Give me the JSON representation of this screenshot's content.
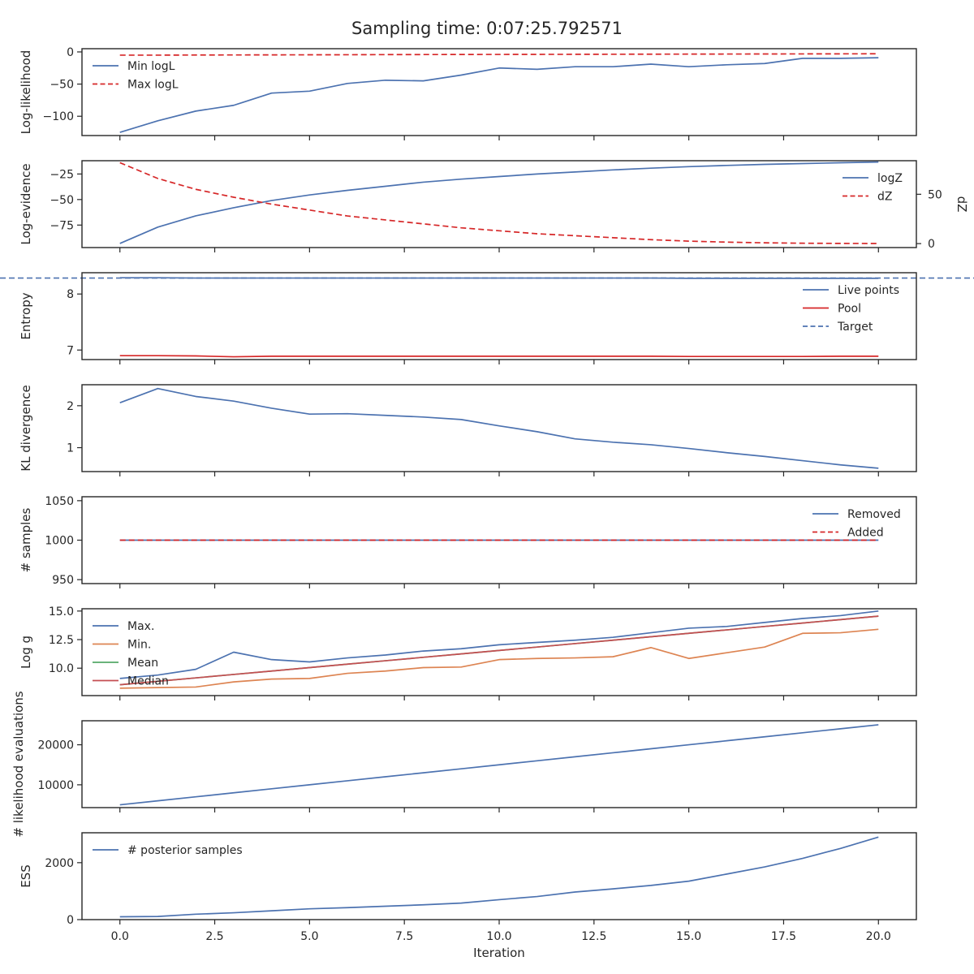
{
  "title": "Sampling time: 0:07:25.792571",
  "xlabel": "Iteration",
  "colors": {
    "blue": "#4c72b0",
    "orange": "#dd8452",
    "green": "#55a868",
    "red": "#c44e52",
    "dashed_red": "#d62728",
    "axes": "#262626"
  },
  "xaxis": {
    "lim": [
      -1,
      21
    ],
    "ticks": [
      0.0,
      2.5,
      5.0,
      7.5,
      10.0,
      12.5,
      15.0,
      17.5,
      20.0
    ],
    "tick_labels": [
      "0.0",
      "2.5",
      "5.0",
      "7.5",
      "10.0",
      "12.5",
      "15.0",
      "17.5",
      "20.0"
    ]
  },
  "chart_data": [
    {
      "type": "line",
      "ylabel": "Log-likelihood",
      "ylim": [
        -130,
        5
      ],
      "yticks": [
        0,
        -50,
        -100
      ],
      "ytick_labels": [
        "0",
        "−50",
        "−100"
      ],
      "legend": "upper left",
      "x": [
        0,
        1,
        2,
        3,
        4,
        5,
        6,
        7,
        8,
        9,
        10,
        11,
        12,
        13,
        14,
        15,
        16,
        17,
        18,
        19,
        20
      ],
      "series": [
        {
          "name": "Min logL",
          "color": "#4c72b0",
          "dash": false,
          "values": [
            -125,
            -107,
            -92,
            -83,
            -64,
            -61,
            -49,
            -44,
            -45,
            -36,
            -25,
            -27,
            -23,
            -23,
            -19,
            -23,
            -20,
            -18,
            -10,
            -10,
            -9
          ]
        },
        {
          "name": "Max logL",
          "color": "#d62728",
          "dash": true,
          "values": [
            -5,
            -5,
            -4.8,
            -4.7,
            -4.6,
            -4.5,
            -4.4,
            -4.2,
            -4.1,
            -4,
            -3.9,
            -3.8,
            -3.7,
            -3.6,
            -3.5,
            -3.4,
            -3.3,
            -3.2,
            -3.1,
            -3,
            -2.9
          ]
        }
      ]
    },
    {
      "type": "line",
      "ylabel": "Log-evidence",
      "ylim": [
        -97,
        -12
      ],
      "yticks": [
        -25,
        -50,
        -75
      ],
      "ytick_labels": [
        "−25",
        "−50",
        "−75"
      ],
      "y2label": "dZ",
      "y2lim": [
        -4,
        84
      ],
      "y2ticks": [
        0,
        50
      ],
      "y2tick_labels": [
        "0",
        "50"
      ],
      "legend": "upper right",
      "x": [
        0,
        1,
        2,
        3,
        4,
        5,
        6,
        7,
        8,
        9,
        10,
        11,
        12,
        13,
        14,
        15,
        16,
        17,
        18,
        19,
        20
      ],
      "series": [
        {
          "name": "logZ",
          "color": "#4c72b0",
          "dash": false,
          "axis": "left",
          "values": [
            -93,
            -77,
            -66,
            -58,
            -51,
            -45.5,
            -41,
            -37,
            -33,
            -30,
            -27.5,
            -25,
            -23,
            -21,
            -19.3,
            -17.8,
            -16.6,
            -15.6,
            -14.8,
            -14,
            -13.3
          ]
        },
        {
          "name": "dZ",
          "color": "#d62728",
          "dash": true,
          "axis": "right",
          "values": [
            82,
            66,
            55,
            47,
            40,
            34,
            28,
            24,
            20,
            16,
            13,
            10,
            8,
            6,
            4,
            2.5,
            1.5,
            0.8,
            0.4,
            0.2,
            0.1
          ]
        }
      ]
    },
    {
      "type": "line",
      "ylabel": "Entropy",
      "ylim": [
        6.83,
        8.38
      ],
      "yticks": [
        8,
        7
      ],
      "ytick_labels": [
        "8",
        "7"
      ],
      "legend": "upper right",
      "x": [
        0,
        1,
        2,
        3,
        4,
        5,
        6,
        7,
        8,
        9,
        10,
        11,
        12,
        13,
        14,
        15,
        16,
        17,
        18,
        19,
        20
      ],
      "series": [
        {
          "name": "Live points",
          "color": "#4c72b0",
          "dash": false,
          "values": [
            8.29,
            8.29,
            8.285,
            8.285,
            8.285,
            8.285,
            8.285,
            8.285,
            8.285,
            8.285,
            8.285,
            8.285,
            8.285,
            8.285,
            8.285,
            8.28,
            8.28,
            8.28,
            8.28,
            8.28,
            8.28
          ]
        },
        {
          "name": "Pool",
          "color": "#d62728",
          "dash": false,
          "values": [
            6.9,
            6.9,
            6.895,
            6.88,
            6.89,
            6.89,
            6.89,
            6.89,
            6.89,
            6.89,
            6.89,
            6.89,
            6.89,
            6.89,
            6.89,
            6.885,
            6.885,
            6.885,
            6.885,
            6.89,
            6.89
          ]
        },
        {
          "name": "Target",
          "color": "#4c72b0",
          "dash": true,
          "hline": 8.285
        }
      ]
    },
    {
      "type": "line",
      "ylabel": "KL divergence",
      "ylim": [
        0.43,
        2.5
      ],
      "yticks": [
        2,
        1
      ],
      "ytick_labels": [
        "2",
        "1"
      ],
      "legend": "none",
      "x": [
        0,
        1,
        2,
        3,
        4,
        5,
        6,
        7,
        8,
        9,
        10,
        11,
        12,
        13,
        14,
        15,
        16,
        17,
        18,
        19,
        20
      ],
      "series": [
        {
          "color": "#4c72b0",
          "dash": false,
          "values": [
            2.07,
            2.41,
            2.22,
            2.11,
            1.94,
            1.8,
            1.81,
            1.77,
            1.73,
            1.67,
            1.52,
            1.38,
            1.21,
            1.13,
            1.07,
            0.98,
            0.88,
            0.79,
            0.69,
            0.59,
            0.51
          ]
        }
      ]
    },
    {
      "type": "line",
      "ylabel": "# samples",
      "ylim": [
        945,
        1055
      ],
      "yticks": [
        1050,
        1000,
        950
      ],
      "ytick_labels": [
        "1050",
        "1000",
        "950"
      ],
      "legend": "upper right",
      "x": [
        0,
        1,
        2,
        3,
        4,
        5,
        6,
        7,
        8,
        9,
        10,
        11,
        12,
        13,
        14,
        15,
        16,
        17,
        18,
        19,
        20
      ],
      "series": [
        {
          "name": "Removed",
          "color": "#4c72b0",
          "dash": false,
          "values": [
            1000,
            1000,
            1000,
            1000,
            1000,
            1000,
            1000,
            1000,
            1000,
            1000,
            1000,
            1000,
            1000,
            1000,
            1000,
            1000,
            1000,
            1000,
            1000,
            1000,
            1000
          ]
        },
        {
          "name": "Added",
          "color": "#d62728",
          "dash": true,
          "values": [
            1000,
            1000,
            1000,
            1000,
            1000,
            1000,
            1000,
            1000,
            1000,
            1000,
            1000,
            1000,
            1000,
            1000,
            1000,
            1000,
            1000,
            1000,
            1000,
            1000,
            1000
          ]
        }
      ]
    },
    {
      "type": "line",
      "ylabel": "Log g",
      "ylim": [
        7.6,
        15.2
      ],
      "yticks": [
        15,
        12.5,
        10
      ],
      "ytick_labels": [
        "15.0",
        "12.5",
        "10.0"
      ],
      "legend": "upper left",
      "x": [
        0,
        1,
        2,
        3,
        4,
        5,
        6,
        7,
        8,
        9,
        10,
        11,
        12,
        13,
        14,
        15,
        16,
        17,
        18,
        19,
        20
      ],
      "series": [
        {
          "name": "Max.",
          "color": "#4c72b0",
          "dash": false,
          "values": [
            9.1,
            9.4,
            9.9,
            11.4,
            10.75,
            10.55,
            10.9,
            11.15,
            11.5,
            11.7,
            12.05,
            12.25,
            12.45,
            12.7,
            13.1,
            13.5,
            13.65,
            14.0,
            14.35,
            14.6,
            15.0
          ]
        },
        {
          "name": "Min.",
          "color": "#dd8452",
          "dash": false,
          "values": [
            8.25,
            8.3,
            8.35,
            8.8,
            9.05,
            9.1,
            9.55,
            9.75,
            10.05,
            10.1,
            10.75,
            10.85,
            10.9,
            11.0,
            11.8,
            10.85,
            11.35,
            11.85,
            13.05,
            13.1,
            13.4
          ]
        },
        {
          "name": "Mean",
          "color": "#55a868",
          "dash": false,
          "values": [
            8.55,
            8.85,
            9.15,
            9.45,
            9.75,
            10.05,
            10.35,
            10.65,
            10.95,
            11.25,
            11.55,
            11.85,
            12.15,
            12.45,
            12.75,
            13.05,
            13.35,
            13.65,
            13.95,
            14.25,
            14.55
          ]
        },
        {
          "name": "Median",
          "color": "#c44e52",
          "dash": false,
          "values": [
            8.55,
            8.85,
            9.15,
            9.45,
            9.75,
            10.05,
            10.35,
            10.65,
            10.95,
            11.25,
            11.55,
            11.85,
            12.15,
            12.45,
            12.75,
            13.05,
            13.35,
            13.65,
            13.95,
            14.25,
            14.55
          ]
        }
      ]
    },
    {
      "type": "line",
      "ylabel": "# likelihood evaluations",
      "ylim": [
        4300,
        26000
      ],
      "yticks": [
        20000,
        10000
      ],
      "ytick_labels": [
        "20000",
        "10000"
      ],
      "legend": "none",
      "x": [
        0,
        1,
        2,
        3,
        4,
        5,
        6,
        7,
        8,
        9,
        10,
        11,
        12,
        13,
        14,
        15,
        16,
        17,
        18,
        19,
        20
      ],
      "series": [
        {
          "color": "#4c72b0",
          "dash": false,
          "values": [
            5000,
            6000,
            7000,
            8000,
            9000,
            10000,
            11000,
            12000,
            13000,
            14000,
            15000,
            16000,
            17000,
            18000,
            19000,
            20000,
            21000,
            22000,
            23000,
            24000,
            25000
          ]
        }
      ]
    },
    {
      "type": "line",
      "ylabel": "ESS",
      "ylim": [
        0,
        3050
      ],
      "yticks": [
        2000,
        0
      ],
      "ytick_labels": [
        "2000",
        "0"
      ],
      "legend": "upper left",
      "x": [
        0,
        1,
        2,
        3,
        4,
        5,
        6,
        7,
        8,
        9,
        10,
        11,
        12,
        13,
        14,
        15,
        16,
        17,
        18,
        19,
        20
      ],
      "series": [
        {
          "name": "# posterior samples",
          "color": "#4c72b0",
          "dash": false,
          "values": [
            100,
            110,
            190,
            240,
            310,
            380,
            420,
            470,
            520,
            580,
            700,
            810,
            970,
            1080,
            1200,
            1350,
            1600,
            1850,
            2150,
            2500,
            2900
          ]
        }
      ]
    }
  ]
}
